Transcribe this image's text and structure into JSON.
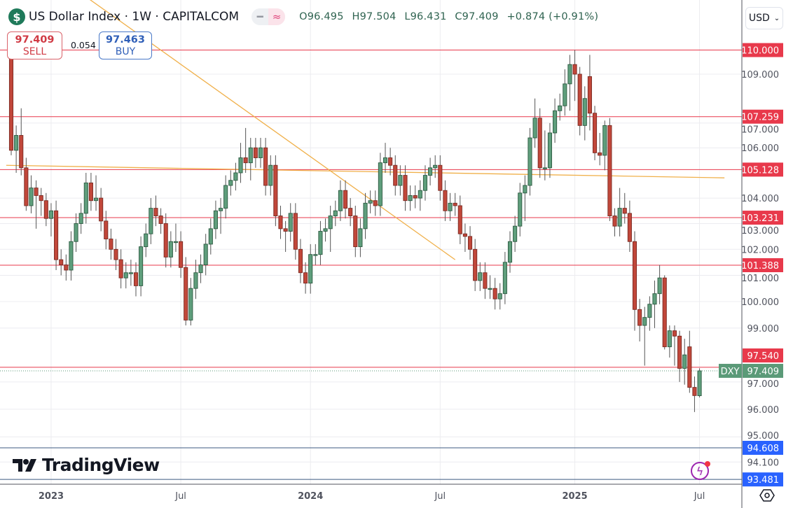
{
  "header": {
    "symbol_icon": "dollar-sign-icon",
    "title": "US Dollar Index · 1W · CAPITALCOM",
    "pill_icons": [
      "minus-icon",
      "wave-approx-icon"
    ],
    "ohlc": {
      "open": "O96.495",
      "high": "H97.504",
      "low": "L96.431",
      "close": "C97.409",
      "change": "+0.874 (+0.91%)"
    }
  },
  "trade": {
    "sell_price": "97.409",
    "sell_label": "SELL",
    "spread": "0.054",
    "buy_price": "97.463",
    "buy_label": "BUY"
  },
  "currency_selector": {
    "value": "USD"
  },
  "branding": {
    "logo_text": "TradingView"
  },
  "colors": {
    "up": "#5f9e7c",
    "down": "#c1473a",
    "level_red": "#e8394b",
    "level_blue": "#2962ff",
    "trendline": "#f0b04a",
    "last_price": "#5b9a78"
  },
  "chart_data": {
    "type": "candlestick",
    "title": "US Dollar Index · 1W · CAPITALCOM",
    "interval": "1W",
    "y_scale": "log",
    "ylim": [
      93.2,
      111.0
    ],
    "grid": true,
    "y_ticks": [
      "109.000",
      "107.000",
      "106.000",
      "104.000",
      "103.000",
      "102.000",
      "101.000",
      "100.000",
      "99.000",
      "97.000",
      "96.000",
      "95.000",
      "94.100"
    ],
    "x_ticks": [
      {
        "label": "2023",
        "date": "2023-01-02",
        "bold": true
      },
      {
        "label": "Jul",
        "date": "2023-07-03",
        "bold": false
      },
      {
        "label": "2024",
        "date": "2024-01-01",
        "bold": true
      },
      {
        "label": "Jul",
        "date": "2024-07-01",
        "bold": false
      },
      {
        "label": "2025",
        "date": "2025-01-06",
        "bold": true
      },
      {
        "label": "Jul",
        "date": "2025-06-30",
        "bold": false
      }
    ],
    "horizontal_levels": [
      {
        "value": "110.000",
        "color": "red"
      },
      {
        "value": "107.259",
        "color": "red"
      },
      {
        "value": "105.128",
        "color": "red"
      },
      {
        "value": "103.231",
        "color": "red"
      },
      {
        "value": "101.388",
        "color": "red"
      },
      {
        "value": "97.540",
        "color": "red"
      },
      {
        "value": "94.608",
        "color": "blue"
      },
      {
        "value": "93.481",
        "color": "blue"
      }
    ],
    "last_price": {
      "label": "DXY",
      "value": "97.409"
    },
    "trendlines": [
      {
        "from": [
          "2022-10-31",
          105.3
        ],
        "to": [
          "2025-08-04",
          104.8
        ]
      },
      {
        "from": [
          "2023-01-16",
          113.0
        ],
        "to": [
          "2024-07-22",
          101.6
        ]
      }
    ],
    "columns": [
      "date",
      "open",
      "high",
      "low",
      "close"
    ],
    "candles": [
      [
        "2022-11-07",
        110.3,
        110.6,
        105.7,
        105.9
      ],
      [
        "2022-11-14",
        105.9,
        106.9,
        105.0,
        106.5
      ],
      [
        "2022-11-21",
        106.5,
        107.6,
        104.9,
        105.2
      ],
      [
        "2022-11-28",
        105.2,
        105.6,
        103.5,
        103.7
      ],
      [
        "2022-12-05",
        103.7,
        104.9,
        103.4,
        104.4
      ],
      [
        "2022-12-12",
        104.4,
        104.7,
        102.8,
        104.1
      ],
      [
        "2022-12-19",
        104.1,
        104.4,
        103.3,
        103.9
      ],
      [
        "2022-12-26",
        103.9,
        104.2,
        102.9,
        103.2
      ],
      [
        "2023-01-02",
        103.2,
        103.8,
        102.5,
        103.5
      ],
      [
        "2023-01-09",
        103.5,
        103.9,
        101.2,
        101.6
      ],
      [
        "2023-01-16",
        101.6,
        102.0,
        101.0,
        101.4
      ],
      [
        "2023-01-23",
        101.4,
        101.8,
        100.8,
        101.2
      ],
      [
        "2023-01-30",
        101.2,
        102.7,
        100.8,
        102.3
      ],
      [
        "2023-02-06",
        102.3,
        103.4,
        101.9,
        103.0
      ],
      [
        "2023-02-13",
        103.0,
        103.8,
        102.6,
        103.4
      ],
      [
        "2023-02-20",
        103.4,
        105.0,
        103.0,
        104.6
      ],
      [
        "2023-02-27",
        104.6,
        105.0,
        103.5,
        103.9
      ],
      [
        "2023-03-06",
        103.9,
        104.9,
        103.5,
        104.0
      ],
      [
        "2023-03-13",
        104.0,
        104.4,
        102.7,
        103.1
      ],
      [
        "2023-03-20",
        103.1,
        103.5,
        102.0,
        102.4
      ],
      [
        "2023-03-27",
        102.4,
        102.8,
        101.6,
        102.0
      ],
      [
        "2023-04-03",
        102.0,
        102.4,
        101.2,
        101.6
      ],
      [
        "2023-04-10",
        101.6,
        102.0,
        100.5,
        100.9
      ],
      [
        "2023-04-17",
        100.9,
        101.5,
        100.5,
        101.1
      ],
      [
        "2023-04-24",
        101.1,
        101.6,
        100.6,
        101.1
      ],
      [
        "2023-05-01",
        101.1,
        101.5,
        100.2,
        100.6
      ],
      [
        "2023-05-08",
        100.6,
        102.5,
        100.2,
        102.1
      ],
      [
        "2023-05-15",
        102.1,
        103.0,
        101.7,
        102.6
      ],
      [
        "2023-05-22",
        102.6,
        104.0,
        102.2,
        103.6
      ],
      [
        "2023-05-29",
        103.6,
        104.1,
        102.9,
        103.3
      ],
      [
        "2023-06-05",
        103.3,
        103.6,
        102.6,
        103.0
      ],
      [
        "2023-06-12",
        103.0,
        103.4,
        101.3,
        101.7
      ],
      [
        "2023-06-19",
        101.7,
        102.7,
        101.3,
        102.3
      ],
      [
        "2023-06-26",
        102.3,
        103.0,
        101.9,
        102.3
      ],
      [
        "2023-07-03",
        102.3,
        102.7,
        100.9,
        101.3
      ],
      [
        "2023-07-10",
        101.3,
        101.7,
        99.1,
        99.3
      ],
      [
        "2023-07-17",
        99.3,
        100.9,
        99.1,
        100.5
      ],
      [
        "2023-07-24",
        100.5,
        101.6,
        100.1,
        101.1
      ],
      [
        "2023-07-31",
        101.1,
        101.8,
        100.7,
        101.4
      ],
      [
        "2023-08-07",
        101.4,
        102.6,
        101.0,
        102.2
      ],
      [
        "2023-08-14",
        102.2,
        103.2,
        101.8,
        102.8
      ],
      [
        "2023-08-21",
        102.8,
        103.9,
        102.4,
        103.5
      ],
      [
        "2023-08-28",
        103.5,
        104.0,
        102.6,
        103.6
      ],
      [
        "2023-09-04",
        103.6,
        104.9,
        103.2,
        104.5
      ],
      [
        "2023-09-11",
        104.5,
        105.1,
        104.1,
        104.7
      ],
      [
        "2023-09-18",
        104.7,
        105.4,
        104.3,
        105.0
      ],
      [
        "2023-09-25",
        105.0,
        106.2,
        104.6,
        105.6
      ],
      [
        "2023-10-02",
        105.6,
        106.8,
        105.0,
        105.4
      ],
      [
        "2023-10-09",
        105.4,
        106.4,
        104.7,
        106.0
      ],
      [
        "2023-10-16",
        106.0,
        106.4,
        105.2,
        105.6
      ],
      [
        "2023-10-23",
        105.6,
        106.4,
        105.2,
        106.0
      ],
      [
        "2023-10-30",
        106.0,
        106.4,
        104.1,
        104.5
      ],
      [
        "2023-11-06",
        104.5,
        105.7,
        104.1,
        105.3
      ],
      [
        "2023-11-13",
        105.3,
        105.7,
        102.9,
        103.3
      ],
      [
        "2023-11-20",
        103.3,
        103.7,
        102.4,
        102.8
      ],
      [
        "2023-11-27",
        102.8,
        103.1,
        101.9,
        102.7
      ],
      [
        "2023-12-04",
        102.7,
        103.8,
        102.3,
        103.4
      ],
      [
        "2023-12-11",
        103.4,
        103.8,
        101.6,
        102.0
      ],
      [
        "2023-12-18",
        102.0,
        102.4,
        100.7,
        101.1
      ],
      [
        "2023-12-25",
        101.1,
        101.5,
        100.3,
        100.7
      ],
      [
        "2024-01-01",
        100.7,
        102.2,
        100.3,
        101.8
      ],
      [
        "2024-01-08",
        101.8,
        102.2,
        101.4,
        101.8
      ],
      [
        "2024-01-15",
        101.8,
        103.1,
        101.4,
        102.7
      ],
      [
        "2024-01-22",
        102.7,
        103.2,
        102.3,
        102.8
      ],
      [
        "2024-01-29",
        102.8,
        103.7,
        101.9,
        103.3
      ],
      [
        "2024-02-05",
        103.3,
        103.9,
        102.9,
        103.5
      ],
      [
        "2024-02-12",
        103.5,
        104.7,
        103.1,
        104.3
      ],
      [
        "2024-02-19",
        104.3,
        104.7,
        103.2,
        103.6
      ],
      [
        "2024-02-26",
        103.6,
        104.0,
        102.9,
        103.3
      ],
      [
        "2024-03-04",
        103.3,
        103.7,
        101.7,
        102.1
      ],
      [
        "2024-03-11",
        102.1,
        103.2,
        101.7,
        102.8
      ],
      [
        "2024-03-18",
        102.8,
        104.2,
        102.4,
        103.8
      ],
      [
        "2024-03-25",
        103.8,
        104.3,
        103.4,
        103.9
      ],
      [
        "2024-04-01",
        103.9,
        104.3,
        103.3,
        103.7
      ],
      [
        "2024-04-08",
        103.7,
        105.8,
        103.3,
        105.4
      ],
      [
        "2024-04-15",
        105.4,
        106.2,
        105.0,
        105.6
      ],
      [
        "2024-04-22",
        105.6,
        106.0,
        104.9,
        105.3
      ],
      [
        "2024-04-29",
        105.3,
        105.7,
        104.1,
        104.5
      ],
      [
        "2024-05-06",
        104.5,
        105.3,
        104.1,
        104.9
      ],
      [
        "2024-05-13",
        104.9,
        105.3,
        103.5,
        103.9
      ],
      [
        "2024-05-20",
        103.9,
        104.5,
        103.5,
        104.1
      ],
      [
        "2024-05-27",
        104.1,
        104.5,
        103.6,
        104.0
      ],
      [
        "2024-06-03",
        104.0,
        104.7,
        103.5,
        104.3
      ],
      [
        "2024-06-10",
        104.3,
        105.3,
        103.9,
        104.9
      ],
      [
        "2024-06-17",
        104.9,
        105.6,
        104.5,
        105.2
      ],
      [
        "2024-06-24",
        105.2,
        105.7,
        104.8,
        105.3
      ],
      [
        "2024-07-01",
        105.3,
        105.7,
        103.9,
        104.3
      ],
      [
        "2024-07-08",
        104.3,
        104.7,
        103.1,
        103.5
      ],
      [
        "2024-07-15",
        103.5,
        104.2,
        103.1,
        103.8
      ],
      [
        "2024-07-22",
        103.8,
        104.2,
        103.3,
        103.7
      ],
      [
        "2024-07-29",
        103.7,
        104.1,
        102.2,
        102.6
      ],
      [
        "2024-08-05",
        102.6,
        103.0,
        101.9,
        102.5
      ],
      [
        "2024-08-12",
        102.5,
        102.9,
        101.6,
        102.0
      ],
      [
        "2024-08-19",
        102.0,
        102.4,
        100.4,
        100.8
      ],
      [
        "2024-08-26",
        100.8,
        101.5,
        100.4,
        101.1
      ],
      [
        "2024-09-02",
        101.1,
        101.5,
        100.1,
        100.5
      ],
      [
        "2024-09-09",
        100.5,
        101.0,
        100.1,
        100.5
      ],
      [
        "2024-09-16",
        100.5,
        100.9,
        99.7,
        100.1
      ],
      [
        "2024-09-23",
        100.1,
        100.7,
        99.7,
        100.3
      ],
      [
        "2024-09-30",
        100.3,
        101.9,
        99.9,
        101.5
      ],
      [
        "2024-10-07",
        101.5,
        102.7,
        101.1,
        102.3
      ],
      [
        "2024-10-14",
        102.3,
        103.3,
        101.9,
        102.9
      ],
      [
        "2024-10-21",
        102.9,
        104.6,
        102.5,
        104.2
      ],
      [
        "2024-10-28",
        104.2,
        104.9,
        103.1,
        104.5
      ],
      [
        "2024-11-04",
        104.5,
        106.8,
        104.1,
        106.4
      ],
      [
        "2024-11-11",
        106.4,
        108.0,
        106.0,
        107.2
      ],
      [
        "2024-11-18",
        107.2,
        107.6,
        104.8,
        105.2
      ],
      [
        "2024-11-25",
        105.2,
        106.7,
        104.7,
        105.2
      ],
      [
        "2024-12-02",
        105.2,
        107.0,
        104.8,
        106.6
      ],
      [
        "2024-12-09",
        106.6,
        108.0,
        106.2,
        107.5
      ],
      [
        "2024-12-16",
        107.5,
        108.2,
        107.1,
        107.7
      ],
      [
        "2024-12-23",
        107.7,
        109.2,
        107.3,
        108.6
      ],
      [
        "2024-12-30",
        108.6,
        109.8,
        107.5,
        109.4
      ],
      [
        "2025-01-06",
        109.4,
        110.0,
        107.9,
        109.0
      ],
      [
        "2025-01-13",
        109.0,
        109.3,
        106.5,
        106.9
      ],
      [
        "2025-01-20",
        106.9,
        108.5,
        106.3,
        108.0
      ],
      [
        "2025-01-27",
        108.9,
        109.8,
        106.7,
        107.4
      ],
      [
        "2025-02-03",
        107.4,
        107.7,
        105.5,
        105.8
      ],
      [
        "2025-02-10",
        105.8,
        106.6,
        105.3,
        105.7
      ],
      [
        "2025-02-17",
        105.7,
        107.1,
        105.1,
        106.9
      ],
      [
        "2025-02-24",
        106.9,
        107.2,
        103.1,
        103.3
      ],
      [
        "2025-03-03",
        103.3,
        103.6,
        102.5,
        102.9
      ],
      [
        "2025-03-10",
        102.9,
        104.4,
        102.5,
        103.6
      ],
      [
        "2025-03-17",
        103.6,
        104.2,
        103.0,
        103.4
      ],
      [
        "2025-03-24",
        103.4,
        103.9,
        101.9,
        102.3
      ],
      [
        "2025-03-31",
        102.3,
        102.7,
        98.9,
        99.7
      ],
      [
        "2025-04-07",
        99.7,
        100.1,
        98.5,
        99.1
      ],
      [
        "2025-04-14",
        99.1,
        99.8,
        97.6,
        99.4
      ],
      [
        "2025-04-21",
        99.4,
        100.2,
        98.9,
        99.9
      ],
      [
        "2025-04-28",
        99.9,
        100.8,
        99.0,
        100.3
      ],
      [
        "2025-05-05",
        100.3,
        101.4,
        99.9,
        100.9
      ],
      [
        "2025-05-12",
        100.9,
        101.0,
        98.2,
        98.3
      ],
      [
        "2025-05-19",
        98.3,
        99.1,
        97.9,
        98.9
      ],
      [
        "2025-05-26",
        98.9,
        99.1,
        97.6,
        98.7
      ],
      [
        "2025-06-02",
        98.7,
        98.9,
        97.0,
        97.5
      ],
      [
        "2025-06-09",
        97.5,
        98.6,
        96.9,
        98.0
      ],
      [
        "2025-06-16",
        98.3,
        98.9,
        96.6,
        96.8
      ],
      [
        "2025-06-23",
        96.8,
        97.2,
        95.9,
        96.5
      ],
      [
        "2025-06-30",
        96.495,
        97.504,
        96.431,
        97.409
      ]
    ]
  }
}
